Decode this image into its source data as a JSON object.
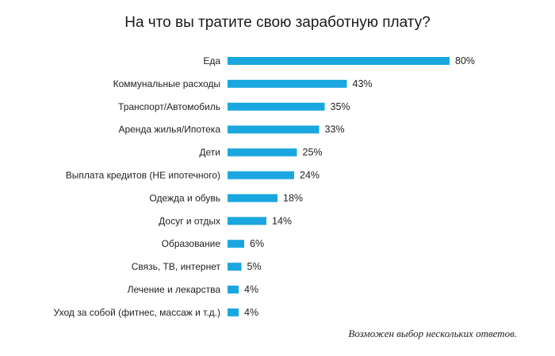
{
  "chart_data": {
    "type": "bar",
    "orientation": "horizontal",
    "title": "На что вы тратите свою заработную плату?",
    "categories": [
      "Еда",
      "Коммунальные расходы",
      "Транспорт/Автомобиль",
      "Аренда жилья/Ипотека",
      "Дети",
      "Выплата кредитов (НЕ ипотечного)",
      "Одежда и обувь",
      "Досуг и отдых",
      "Образование",
      "Связь, ТВ, интернет",
      "Лечение и лекарства",
      "Уход за собой (фитнес, массаж и т.д.)"
    ],
    "values": [
      80,
      43,
      35,
      33,
      25,
      24,
      18,
      14,
      6,
      5,
      4,
      4
    ],
    "value_labels": [
      "80%",
      "43%",
      "35%",
      "33%",
      "25%",
      "24%",
      "18%",
      "14%",
      "6%",
      "5%",
      "4%",
      "4%"
    ],
    "unit": "%",
    "bar_color": "#1aa7e0",
    "grid": false,
    "legend": "none"
  },
  "footnote": "Возможен выбор нескольких ответов."
}
